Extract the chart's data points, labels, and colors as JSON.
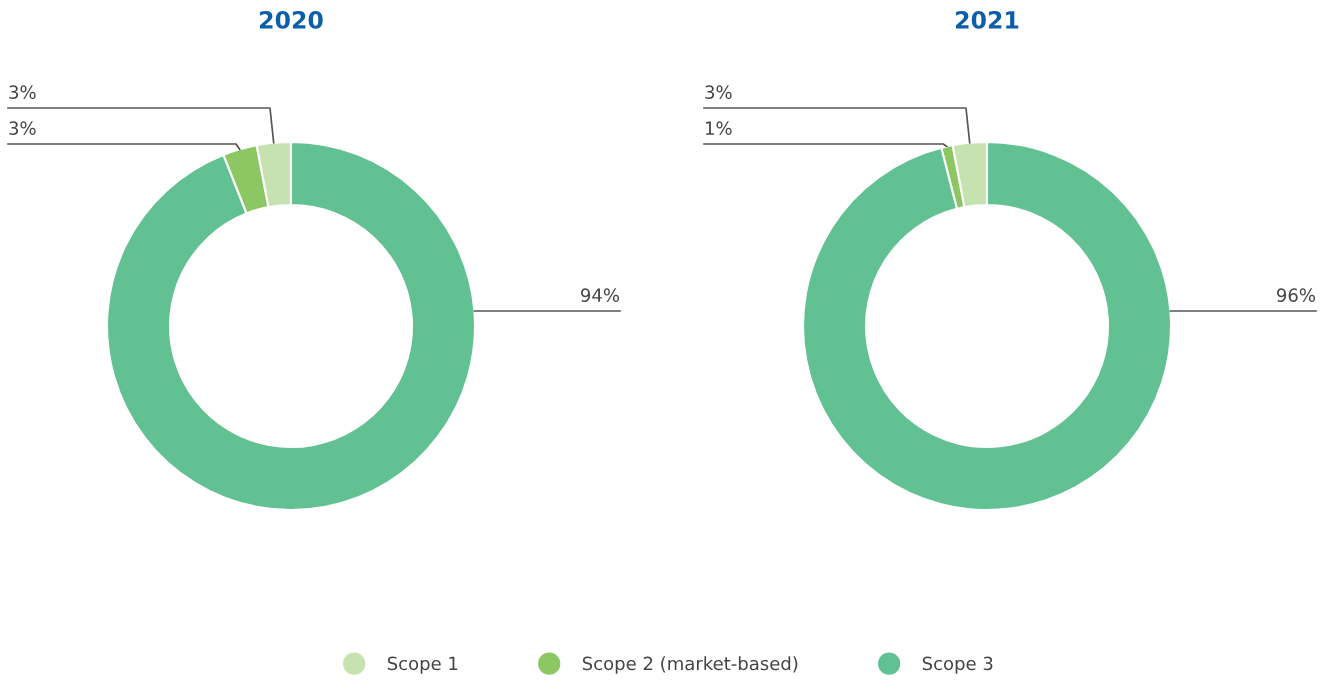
{
  "chart_data": [
    {
      "type": "donut",
      "title": "2020",
      "categories": [
        "Scope 1",
        "Scope 2 (market-based)",
        "Scope 3"
      ],
      "values": [
        3,
        3,
        94
      ],
      "value_labels": [
        "3%",
        "3%",
        "94%"
      ],
      "colors": [
        "#c5e2b0",
        "#8cc763",
        "#62c193"
      ],
      "legend": "bottom"
    },
    {
      "type": "donut",
      "title": "2021",
      "categories": [
        null,
        null,
        null
      ],
      "values": [
        3,
        1,
        96
      ],
      "value_labels": [
        "3%",
        "1%",
        "96%"
      ],
      "colors": [
        "#c5e2b0",
        "#8cc763",
        "#62c193"
      ]
    }
  ]
}
